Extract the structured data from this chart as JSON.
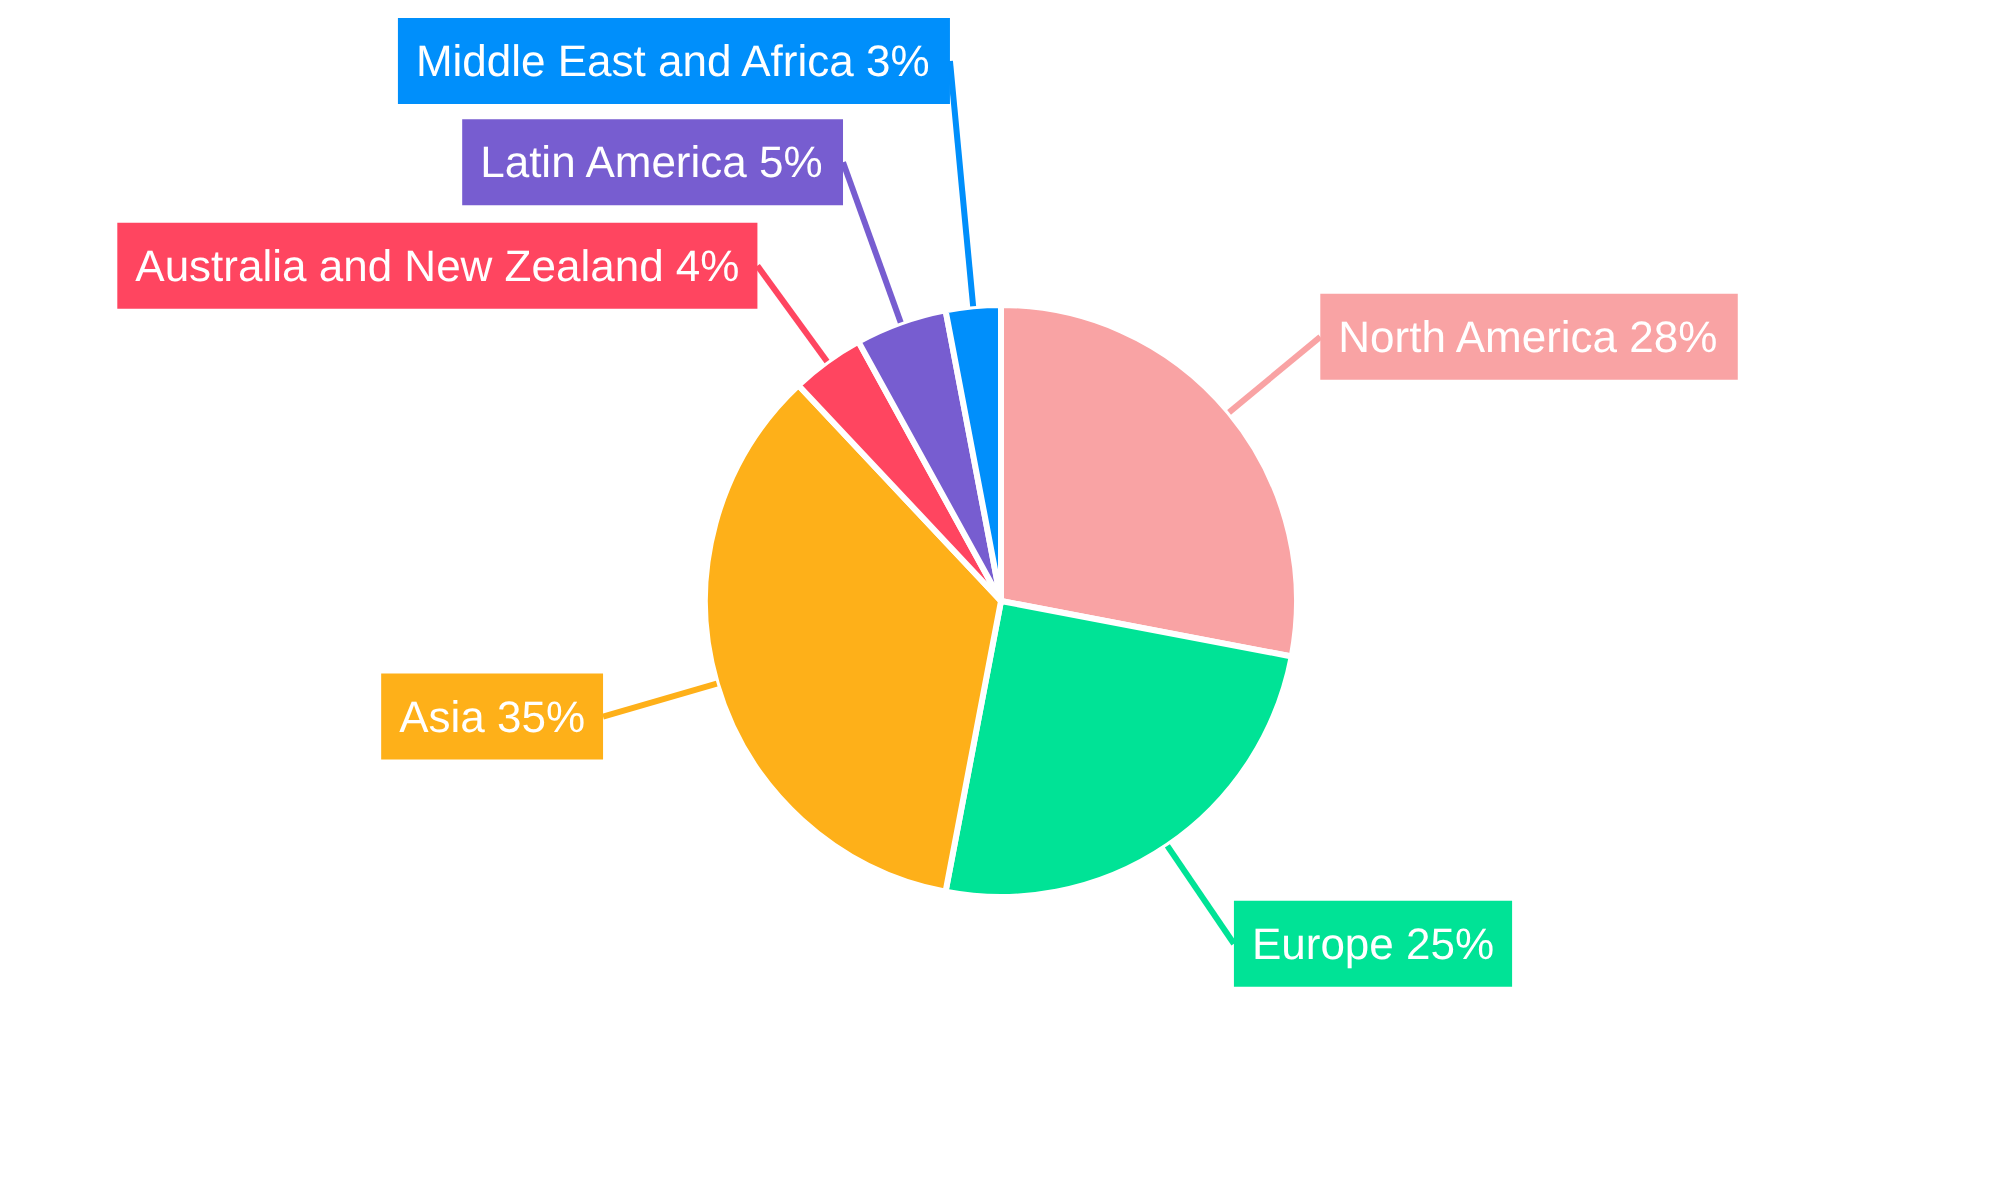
{
  "chart_data": {
    "type": "pie",
    "categories": [
      "North America",
      "Europe",
      "Asia",
      "Australia and New Zealand",
      "Latin America",
      "Middle East and Africa"
    ],
    "values": [
      28,
      25,
      35,
      4,
      5,
      3
    ],
    "colors": [
      "#f9a3a4",
      "#00e396",
      "#feb019",
      "#ff4560",
      "#775dd0",
      "#008ffb"
    ],
    "value_labels": [
      "28%",
      "25%",
      "35%",
      "4%",
      "5%",
      "3%"
    ]
  }
}
